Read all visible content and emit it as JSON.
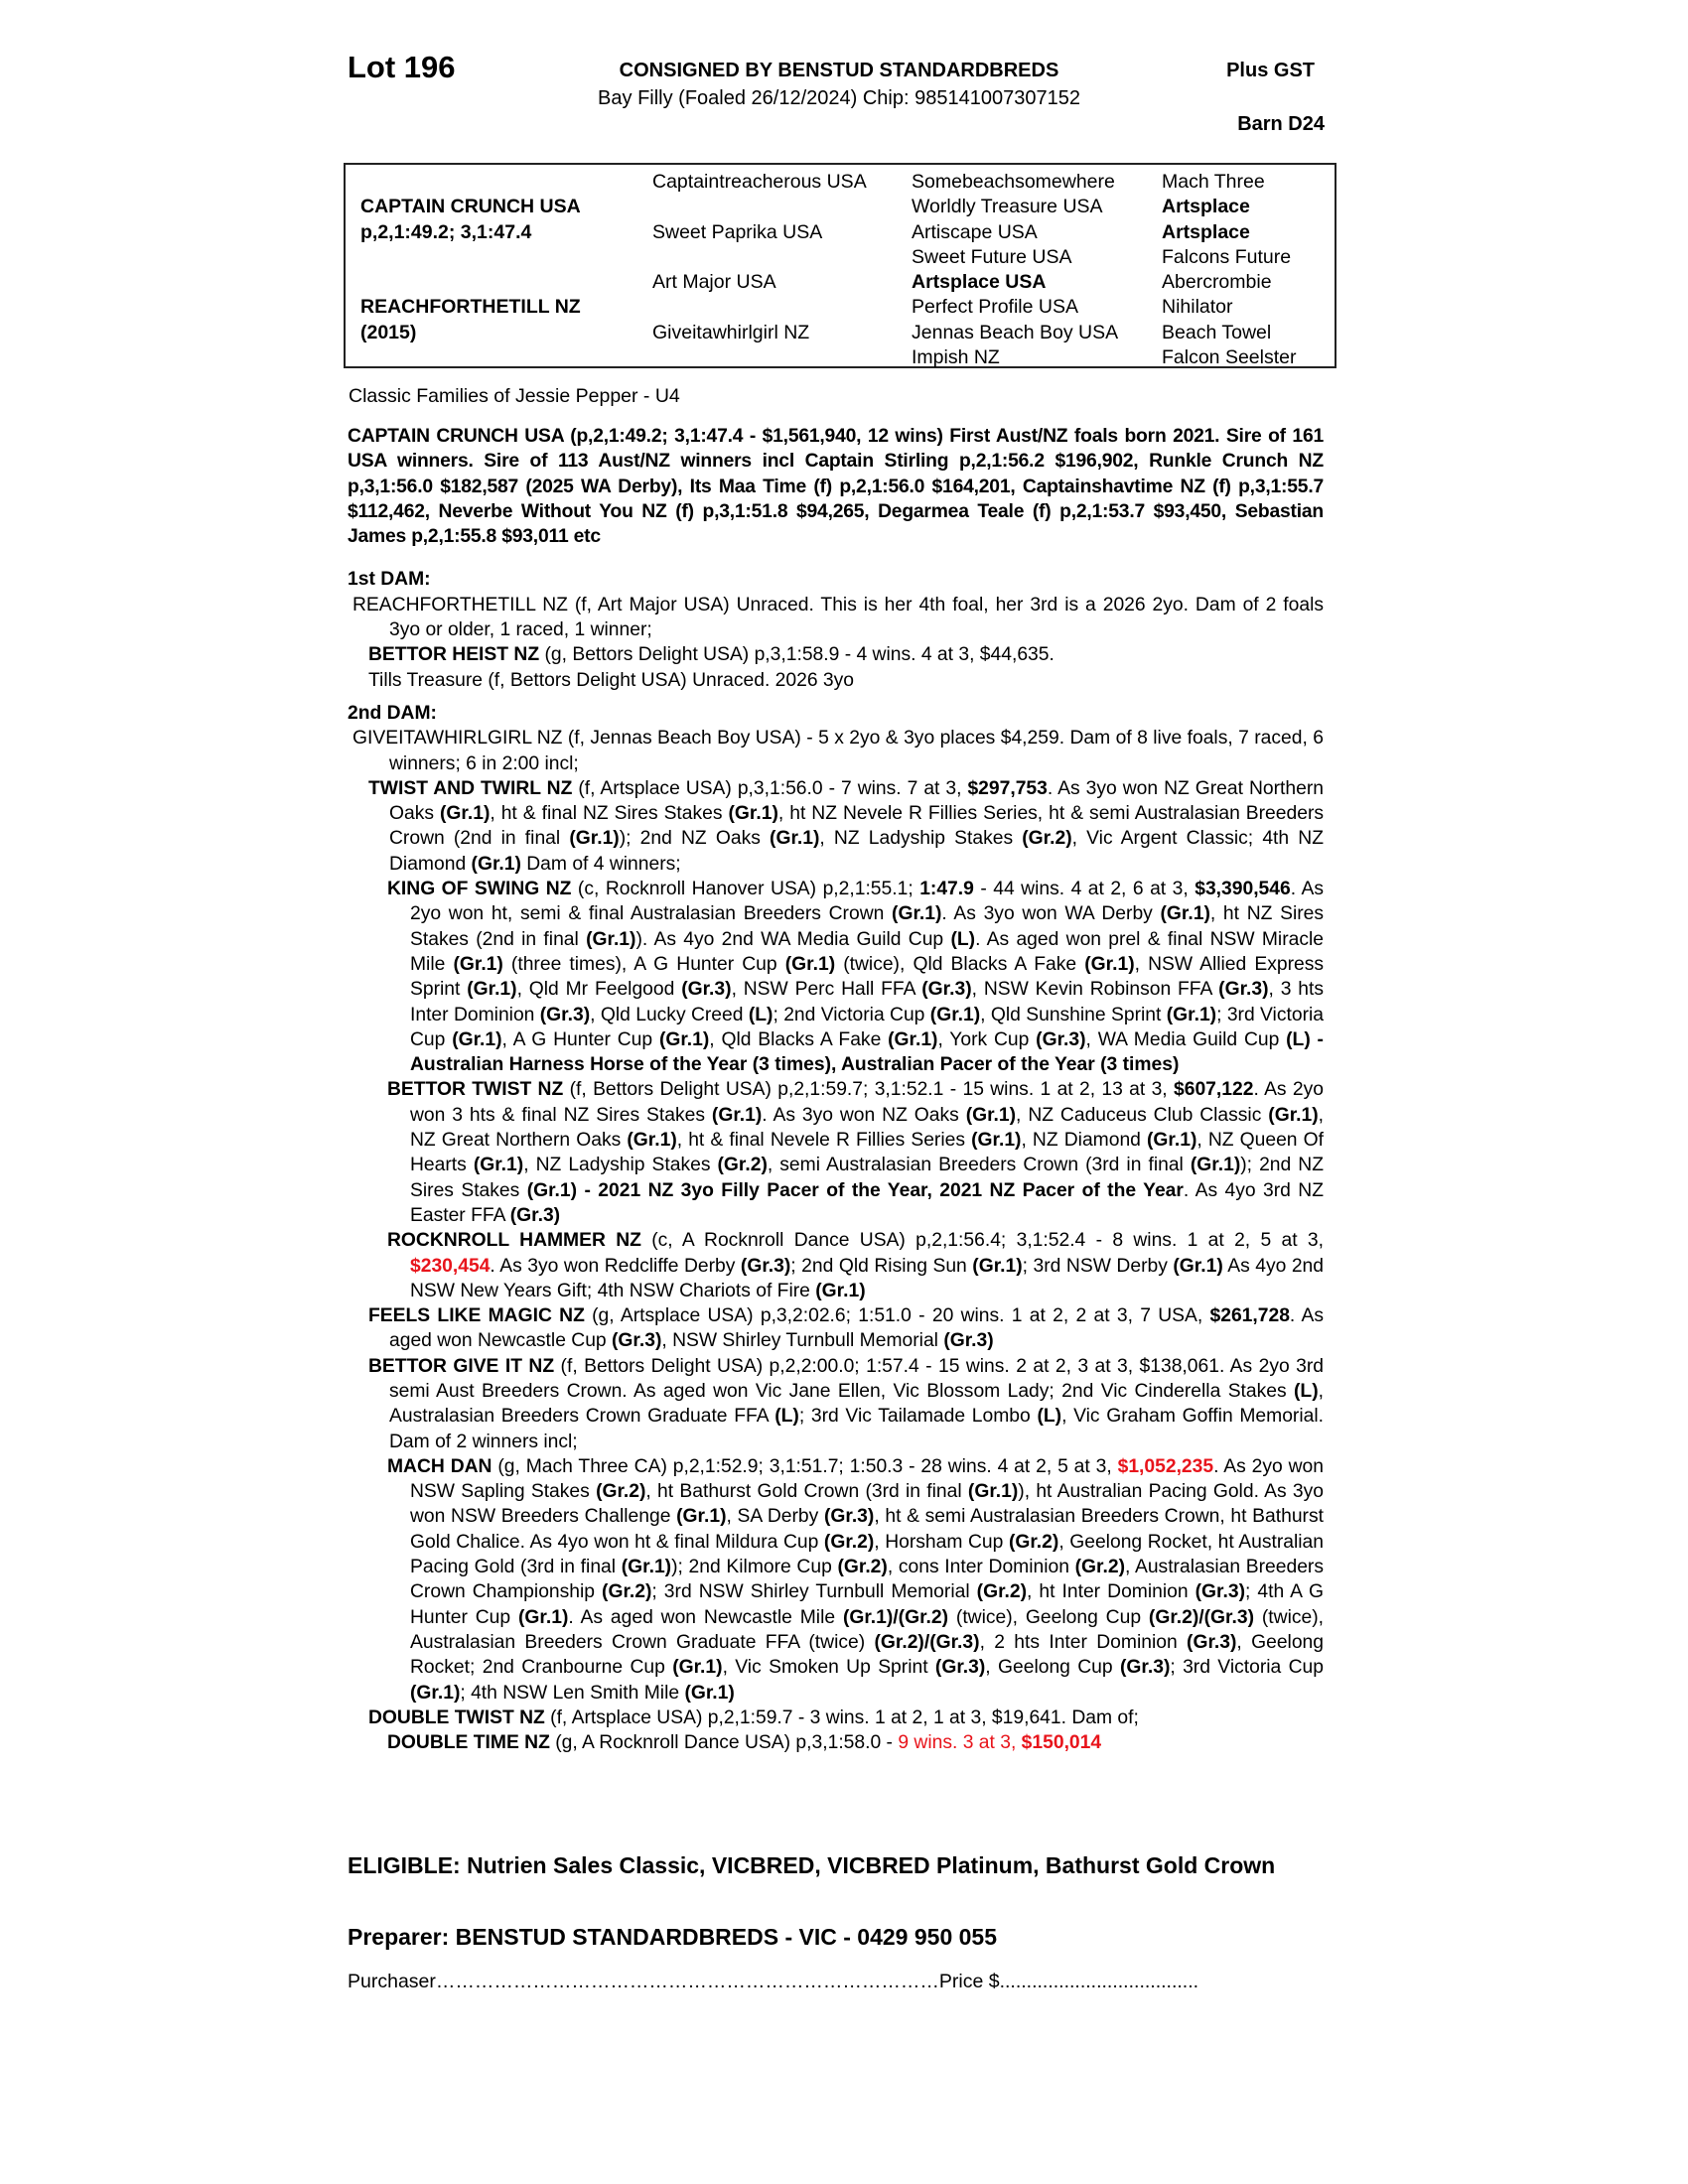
{
  "header": {
    "lot": "Lot 196",
    "consigned": "CONSIGNED BY BENSTUD STANDARDBREDS",
    "subtitle": "Bay Filly (Foaled 26/12/2024) Chip: 985141007307152",
    "gst": "Plus GST",
    "barn": "Barn D24"
  },
  "pedigree": {
    "columns": [
      [
        null,
        [
          "CAPTAIN CRUNCH USA",
          "b"
        ],
        [
          "p,2,1:49.2; 3,1:47.4",
          "b"
        ],
        null,
        null,
        [
          "REACHFORTHETILL NZ",
          "b"
        ],
        [
          "(2015)",
          "b"
        ],
        null
      ],
      [
        [
          "Captaintreacherous USA",
          ""
        ],
        null,
        [
          "Sweet Paprika USA",
          ""
        ],
        null,
        [
          "Art Major USA",
          ""
        ],
        null,
        [
          "Giveitawhirlgirl NZ",
          ""
        ],
        null
      ],
      [
        [
          "Somebeachsomewhere",
          ""
        ],
        [
          "Worldly Treasure USA",
          ""
        ],
        [
          "Artiscape USA",
          ""
        ],
        [
          "Sweet Future USA",
          ""
        ],
        [
          "Artsplace USA",
          "b"
        ],
        [
          "Perfect Profile USA",
          ""
        ],
        [
          "Jennas Beach Boy USA",
          ""
        ],
        [
          "Impish NZ",
          ""
        ]
      ],
      [
        [
          "Mach Three",
          ""
        ],
        [
          "Artsplace",
          "b"
        ],
        [
          "Artsplace",
          "b"
        ],
        [
          "Falcons Future",
          ""
        ],
        [
          "Abercrombie",
          ""
        ],
        [
          "Nihilator",
          ""
        ],
        [
          "Beach Towel",
          ""
        ],
        [
          "Falcon Seelster",
          ""
        ]
      ]
    ]
  },
  "family": "Classic Families of Jessie Pepper - U4",
  "sire_note": "CAPTAIN CRUNCH USA (p,2,1:49.2; 3,1:47.4 - $1,561,940, 12 wins) First Aust/NZ foals born 2021. Sire of 161 USA winners. Sire of 113 Aust/NZ winners incl Captain Stirling p,2,1:56.2 $196,902, Runkle Crunch NZ p,3,1:56.0 $182,587 (2025 WA Derby), Its Maa Time (f) p,2,1:56.0 $164,201, Captainshavtime NZ (f)  p,3,1:55.7 $112,462, Neverbe Without You NZ (f) p,3,1:51.8 $94,265, Degarmea Teale (f) p,2,1:53.7 $93,450, Sebastian James p,2,1:55.8 $93,011 etc",
  "sections": [
    {
      "heading": "1st DAM:",
      "paras": [
        {
          "level": 0,
          "segs": [
            [
              "REACHFORTHETILL NZ (f, Art Major USA) Unraced. This is her 4th foal, her 3rd is a 2026 2yo. Dam of 2 foals 3yo or older, 1 raced, 1 winner;",
              ""
            ]
          ]
        },
        {
          "level": 1,
          "segs": [
            [
              "BETTOR HEIST NZ",
              "b"
            ],
            [
              " (g, Bettors Delight USA) p,3,1:58.9 - 4 wins. 4 at 3, $44,635.",
              ""
            ]
          ]
        },
        {
          "level": 1,
          "segs": [
            [
              "Tills Treasure (f, Bettors Delight USA) Unraced. 2026 3yo",
              ""
            ]
          ]
        }
      ]
    },
    {
      "heading": "2nd DAM:",
      "paras": [
        {
          "level": 0,
          "segs": [
            [
              "GIVEITAWHIRLGIRL NZ (f, Jennas Beach Boy USA) - 5 x 2yo & 3yo places $4,259. Dam of 8 live foals, 7 raced, 6 winners; 6 in 2:00 incl;",
              ""
            ]
          ]
        },
        {
          "level": 1,
          "segs": [
            [
              "TWIST AND TWIRL NZ",
              "b"
            ],
            [
              " (f, Artsplace USA) p,3,1:56.0 - 7 wins. 7 at 3, ",
              ""
            ],
            [
              "$297,753",
              "b"
            ],
            [
              ". As 3yo won NZ Great Northern Oaks ",
              ""
            ],
            [
              "(Gr.1)",
              "b"
            ],
            [
              ", ht & final NZ Sires Stakes ",
              ""
            ],
            [
              "(Gr.1)",
              "b"
            ],
            [
              ", ht NZ Nevele R Fillies Series, ht & semi Australasian Breeders Crown (2nd in final ",
              ""
            ],
            [
              "(Gr.1)",
              "b"
            ],
            [
              "); 2nd NZ Oaks ",
              ""
            ],
            [
              "(Gr.1)",
              "b"
            ],
            [
              ", NZ Ladyship Stakes ",
              ""
            ],
            [
              "(Gr.2)",
              "b"
            ],
            [
              ", Vic Argent Classic; 4th NZ Diamond ",
              ""
            ],
            [
              "(Gr.1)",
              "b"
            ],
            [
              " Dam of 4 winners;",
              ""
            ]
          ]
        },
        {
          "level": 2,
          "segs": [
            [
              "KING OF SWING NZ",
              "b"
            ],
            [
              " (c, Rocknroll Hanover USA) p,2,1:55.1; ",
              ""
            ],
            [
              "1:47.9",
              "b"
            ],
            [
              " - 44 wins. 4 at 2, 6 at 3, ",
              ""
            ],
            [
              "$3,390,546",
              "b"
            ],
            [
              ". As 2yo won ht, semi & final Australasian Breeders Crown ",
              ""
            ],
            [
              "(Gr.1)",
              "b"
            ],
            [
              ". As 3yo won WA Derby ",
              ""
            ],
            [
              "(Gr.1)",
              "b"
            ],
            [
              ", ht NZ Sires Stakes (2nd in final ",
              ""
            ],
            [
              "(Gr.1)",
              "b"
            ],
            [
              "). As 4yo 2nd WA Media Guild Cup ",
              ""
            ],
            [
              "(L)",
              "b"
            ],
            [
              ". As aged won prel & final NSW Miracle Mile ",
              ""
            ],
            [
              "(Gr.1)",
              "b"
            ],
            [
              " (three times), A G Hunter Cup ",
              ""
            ],
            [
              "(Gr.1)",
              "b"
            ],
            [
              " (twice), Qld Blacks A Fake ",
              ""
            ],
            [
              "(Gr.1)",
              "b"
            ],
            [
              ", NSW Allied Express Sprint ",
              ""
            ],
            [
              "(Gr.1)",
              "b"
            ],
            [
              ", Qld Mr Feelgood ",
              ""
            ],
            [
              "(Gr.3)",
              "b"
            ],
            [
              ", NSW Perc Hall FFA ",
              ""
            ],
            [
              "(Gr.3)",
              "b"
            ],
            [
              ", NSW Kevin Robinson FFA ",
              ""
            ],
            [
              "(Gr.3)",
              "b"
            ],
            [
              ", 3 hts Inter Dominion ",
              ""
            ],
            [
              "(Gr.3)",
              "b"
            ],
            [
              ", Qld Lucky Creed ",
              ""
            ],
            [
              "(L)",
              "b"
            ],
            [
              "; 2nd Victoria Cup ",
              ""
            ],
            [
              "(Gr.1)",
              "b"
            ],
            [
              ", Qld Sunshine Sprint ",
              ""
            ],
            [
              "(Gr.1)",
              "b"
            ],
            [
              "; 3rd Victoria Cup ",
              ""
            ],
            [
              "(Gr.1)",
              "b"
            ],
            [
              ", A G Hunter Cup ",
              ""
            ],
            [
              "(Gr.1)",
              "b"
            ],
            [
              ", Qld Blacks A Fake ",
              ""
            ],
            [
              "(Gr.1)",
              "b"
            ],
            [
              ", York Cup ",
              ""
            ],
            [
              "(Gr.3)",
              "b"
            ],
            [
              ", WA Media Guild Cup ",
              ""
            ],
            [
              "(L) - Australian Harness Horse of the Year (3 times), Australian Pacer of the Year (3 times)",
              "b"
            ]
          ]
        },
        {
          "level": 2,
          "segs": [
            [
              "BETTOR TWIST NZ",
              "b"
            ],
            [
              " (f, Bettors Delight USA) p,2,1:59.7; 3,1:52.1 - 15 wins. 1 at 2, 13 at 3, ",
              ""
            ],
            [
              "$607,122",
              "b"
            ],
            [
              ". As 2yo won 3 hts & final NZ Sires Stakes ",
              ""
            ],
            [
              "(Gr.1)",
              "b"
            ],
            [
              ". As 3yo won NZ Oaks ",
              ""
            ],
            [
              "(Gr.1)",
              "b"
            ],
            [
              ", NZ Caduceus Club Classic ",
              ""
            ],
            [
              "(Gr.1)",
              "b"
            ],
            [
              ", NZ Great Northern Oaks ",
              ""
            ],
            [
              "(Gr.1)",
              "b"
            ],
            [
              ", ht & final Nevele R Fillies Series ",
              ""
            ],
            [
              "(Gr.1)",
              "b"
            ],
            [
              ", NZ Diamond ",
              ""
            ],
            [
              "(Gr.1)",
              "b"
            ],
            [
              ", NZ Queen Of Hearts ",
              ""
            ],
            [
              "(Gr.1)",
              "b"
            ],
            [
              ", NZ Ladyship Stakes ",
              ""
            ],
            [
              "(Gr.2)",
              "b"
            ],
            [
              ", semi Australasian Breeders Crown (3rd in final ",
              ""
            ],
            [
              "(Gr.1)",
              "b"
            ],
            [
              "); 2nd NZ Sires Stakes ",
              ""
            ],
            [
              "(Gr.1) - 2021 NZ 3yo Filly Pacer of the Year, 2021 NZ Pacer of the Year",
              "b"
            ],
            [
              ". As 4yo 3rd NZ Easter FFA ",
              ""
            ],
            [
              "(Gr.3)",
              "b"
            ]
          ]
        },
        {
          "level": 2,
          "segs": [
            [
              "ROCKNROLL HAMMER NZ",
              "b"
            ],
            [
              " (c, A Rocknroll Dance USA) p,2,1:56.4; 3,1:52.4 - 8 wins. 1 at 2, 5 at 3, ",
              ""
            ],
            [
              "$230,454",
              "rb"
            ],
            [
              ". As 3yo won Redcliffe Derby ",
              ""
            ],
            [
              "(Gr.3)",
              "b"
            ],
            [
              "; 2nd Qld Rising Sun ",
              ""
            ],
            [
              "(Gr.1)",
              "b"
            ],
            [
              "; 3rd NSW Derby ",
              ""
            ],
            [
              "(Gr.1)",
              "b"
            ],
            [
              " As 4yo 2nd NSW New Years Gift; 4th NSW Chariots of Fire ",
              ""
            ],
            [
              "(Gr.1)",
              "b"
            ]
          ]
        },
        {
          "level": 1,
          "segs": [
            [
              "FEELS LIKE MAGIC NZ",
              "b"
            ],
            [
              " (g, Artsplace USA) p,3,2:02.6; 1:51.0 - 20 wins. 1 at 2, 2 at 3, 7 USA, ",
              ""
            ],
            [
              "$261,728",
              "b"
            ],
            [
              ". As aged won Newcastle Cup ",
              ""
            ],
            [
              "(Gr.3)",
              "b"
            ],
            [
              ", NSW Shirley Turnbull Memorial ",
              ""
            ],
            [
              "(Gr.3)",
              "b"
            ]
          ]
        },
        {
          "level": 1,
          "segs": [
            [
              "BETTOR GIVE IT NZ",
              "b"
            ],
            [
              " (f, Bettors Delight USA) p,2,2:00.0; 1:57.4 - 15 wins. 2 at 2, 3 at 3, $138,061. As 2yo 3rd semi Aust Breeders Crown. As aged won Vic Jane Ellen, Vic Blossom Lady; 2nd Vic Cinderella Stakes ",
              ""
            ],
            [
              "(L)",
              "b"
            ],
            [
              ", Australasian Breeders Crown Graduate FFA ",
              ""
            ],
            [
              "(L)",
              "b"
            ],
            [
              "; 3rd Vic Tailamade Lombo ",
              ""
            ],
            [
              "(L)",
              "b"
            ],
            [
              ", Vic Graham Goffin Memorial. Dam of 2 winners incl;",
              ""
            ]
          ]
        },
        {
          "level": 2,
          "segs": [
            [
              "MACH DAN",
              "b"
            ],
            [
              " (g, Mach Three CA) p,2,1:52.9; 3,1:51.7; 1:50.3 - 28 wins. 4 at 2, 5 at 3, ",
              ""
            ],
            [
              "$1,052,235",
              "rb"
            ],
            [
              ". As 2yo won NSW Sapling Stakes ",
              ""
            ],
            [
              "(Gr.2)",
              "b"
            ],
            [
              ", ht Bathurst Gold Crown (3rd in final ",
              ""
            ],
            [
              "(Gr.1)",
              "b"
            ],
            [
              "), ht Australian Pacing Gold. As 3yo won NSW Breeders Challenge ",
              ""
            ],
            [
              "(Gr.1)",
              "b"
            ],
            [
              ", SA Derby ",
              ""
            ],
            [
              "(Gr.3)",
              "b"
            ],
            [
              ", ht & semi Australasian Breeders Crown, ht Bathurst Gold Chalice. As 4yo won ht & final Mildura Cup ",
              ""
            ],
            [
              "(Gr.2)",
              "b"
            ],
            [
              ", Horsham Cup ",
              ""
            ],
            [
              "(Gr.2)",
              "b"
            ],
            [
              ", Geelong Rocket, ht Australian Pacing Gold (3rd in final ",
              ""
            ],
            [
              "(Gr.1)",
              "b"
            ],
            [
              "); 2nd Kilmore Cup ",
              ""
            ],
            [
              "(Gr.2)",
              "b"
            ],
            [
              ", cons Inter Dominion ",
              ""
            ],
            [
              "(Gr.2)",
              "b"
            ],
            [
              ", Australasian Breeders Crown Championship ",
              ""
            ],
            [
              "(Gr.2)",
              "b"
            ],
            [
              "; 3rd NSW Shirley Turnbull Memorial ",
              ""
            ],
            [
              "(Gr.2)",
              "b"
            ],
            [
              ", ht Inter Dominion ",
              ""
            ],
            [
              "(Gr.3)",
              "b"
            ],
            [
              "; 4th A G Hunter Cup ",
              ""
            ],
            [
              "(Gr.1)",
              "b"
            ],
            [
              ". As aged won Newcastle Mile ",
              ""
            ],
            [
              "(Gr.1)/(Gr.2)",
              "b"
            ],
            [
              " (twice), Geelong Cup ",
              ""
            ],
            [
              "(Gr.2)/(Gr.3)",
              "b"
            ],
            [
              " (twice), Australasian Breeders Crown Graduate FFA (twice) ",
              ""
            ],
            [
              "(Gr.2)/(Gr.3)",
              "b"
            ],
            [
              ", 2 hts Inter Dominion ",
              ""
            ],
            [
              "(Gr.3)",
              "b"
            ],
            [
              ", Geelong Rocket; 2nd Cranbourne Cup ",
              ""
            ],
            [
              "(Gr.1)",
              "b"
            ],
            [
              ", Vic Smoken Up Sprint ",
              ""
            ],
            [
              "(Gr.3)",
              "b"
            ],
            [
              ", Geelong Cup ",
              ""
            ],
            [
              "(Gr.3)",
              "b"
            ],
            [
              "; 3rd Victoria Cup ",
              ""
            ],
            [
              "(Gr.1)",
              "b"
            ],
            [
              "; 4th NSW Len Smith Mile ",
              ""
            ],
            [
              "(Gr.1)",
              "b"
            ]
          ]
        },
        {
          "level": 1,
          "segs": [
            [
              "DOUBLE TWIST NZ",
              "b"
            ],
            [
              " (f, Artsplace USA) p,2,1:59.7 - 3 wins. 1 at 2, 1 at 3, $19,641. Dam of;",
              ""
            ]
          ]
        },
        {
          "level": 2,
          "segs": [
            [
              "DOUBLE TIME NZ",
              "b"
            ],
            [
              " (g, A Rocknroll Dance USA) p,3,1:58.0 - ",
              ""
            ],
            [
              "9 wins. 3 at 3, ",
              "r"
            ],
            [
              "$150,014",
              "rb"
            ]
          ]
        }
      ]
    }
  ],
  "footer": {
    "eligible": "ELIGIBLE: Nutrien Sales Classic, VICBRED, VICBRED Platinum, Bathurst Gold Crown",
    "preparer": "Preparer: BENSTUD STANDARDBREDS - VIC - 0429 950 055",
    "purchaser_label": "Purchaser",
    "purchaser_dots": "……………………………………………………………………",
    "price_label": "Price $",
    "price_dots": "....................................."
  },
  "colors": {
    "text": "#000000",
    "highlight_red": "#e8141b",
    "border": "#222222"
  }
}
